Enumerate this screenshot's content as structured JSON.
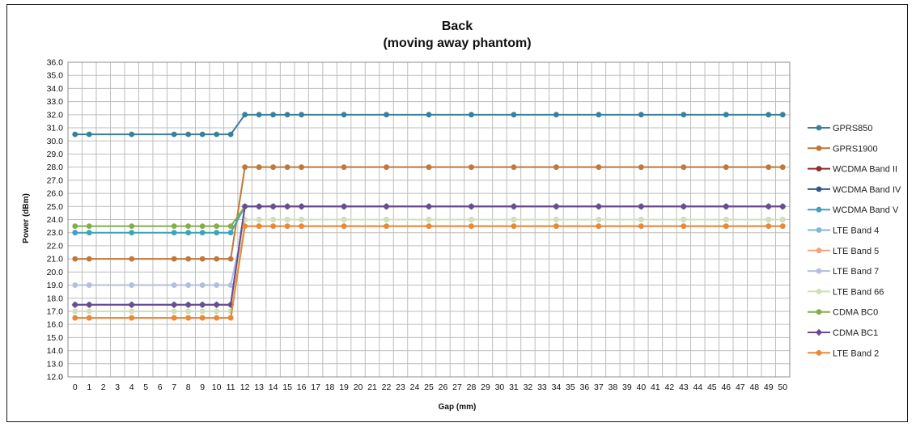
{
  "chart_data": {
    "type": "line",
    "title": "Back",
    "subtitle": "(moving away phantom)",
    "xlabel": "Gap (mm)",
    "ylabel": "Power (dBm)",
    "ylim": [
      12.0,
      36.0
    ],
    "y_step": 1.0,
    "y_tick_format": "one-decimal",
    "grid": true,
    "legend_position": "right",
    "x_categories": [
      "0",
      "1",
      "2",
      "3",
      "4",
      "5",
      "6",
      "7",
      "8",
      "9",
      "10",
      "11",
      "12",
      "13",
      "14",
      "15",
      "16",
      "17",
      "18",
      "19",
      "20",
      "21",
      "22",
      "23",
      "24",
      "25",
      "26",
      "27",
      "28",
      "29",
      "30",
      "31",
      "32",
      "33",
      "34",
      "35",
      "36",
      "37",
      "38",
      "39",
      "40",
      "41",
      "42",
      "43",
      "44",
      "45",
      "46",
      "47",
      "48",
      "49",
      "50"
    ],
    "x": [
      0,
      1,
      4,
      7,
      8,
      9,
      10,
      11,
      12,
      13,
      14,
      15,
      16,
      19,
      22,
      25,
      28,
      31,
      34,
      37,
      40,
      43,
      46,
      49,
      50
    ],
    "series": [
      {
        "name": "GPRS850",
        "color": "#3a8099",
        "marker": "circle",
        "values": [
          30.5,
          30.5,
          30.5,
          30.5,
          30.5,
          30.5,
          30.5,
          30.5,
          32,
          32,
          32,
          32,
          32,
          32,
          32,
          32,
          32,
          32,
          32,
          32,
          32,
          32,
          32,
          32,
          32
        ]
      },
      {
        "name": "GPRS1900",
        "color": "#c0773a",
        "marker": "circle",
        "values": [
          21,
          21,
          21,
          21,
          21,
          21,
          21,
          21,
          28,
          28,
          28,
          28,
          28,
          28,
          28,
          28,
          28,
          28,
          28,
          28,
          28,
          28,
          28,
          28,
          28
        ]
      },
      {
        "name": "WCDMA Band II",
        "color": "#8b2f2f",
        "marker": "circle",
        "values": [
          17.5,
          17.5,
          17.5,
          17.5,
          17.5,
          17.5,
          17.5,
          17.5,
          25,
          25,
          25,
          25,
          25,
          25,
          25,
          25,
          25,
          25,
          25,
          25,
          25,
          25,
          25,
          25,
          25
        ]
      },
      {
        "name": "WCDMA Band IV",
        "color": "#2f5a8b",
        "marker": "circle",
        "values": [
          17.5,
          17.5,
          17.5,
          17.5,
          17.5,
          17.5,
          17.5,
          17.5,
          25,
          25,
          25,
          25,
          25,
          25,
          25,
          25,
          25,
          25,
          25,
          25,
          25,
          25,
          25,
          25,
          25
        ]
      },
      {
        "name": "WCDMA Band V",
        "color": "#3fa3bd",
        "marker": "circle",
        "values": [
          23,
          23,
          23,
          23,
          23,
          23,
          23,
          23,
          25,
          25,
          25,
          25,
          25,
          25,
          25,
          25,
          25,
          25,
          25,
          25,
          25,
          25,
          25,
          25,
          25
        ]
      },
      {
        "name": "LTE Band 4",
        "color": "#7fb8d8",
        "marker": "circle",
        "values": [
          17.5,
          17.5,
          17.5,
          17.5,
          17.5,
          17.5,
          17.5,
          17.5,
          24,
          24,
          24,
          24,
          24,
          24,
          24,
          24,
          24,
          24,
          24,
          24,
          24,
          24,
          24,
          24,
          24
        ]
      },
      {
        "name": "LTE Band 5",
        "color": "#f0a57f",
        "marker": "circle",
        "values": [
          16.5,
          16.5,
          16.5,
          16.5,
          16.5,
          16.5,
          16.5,
          16.5,
          23.5,
          23.5,
          23.5,
          23.5,
          23.5,
          23.5,
          23.5,
          23.5,
          23.5,
          23.5,
          23.5,
          23.5,
          23.5,
          23.5,
          23.5,
          23.5,
          23.5
        ]
      },
      {
        "name": "LTE Band 7",
        "color": "#b3bfe0",
        "marker": "circle",
        "values": [
          19,
          19,
          19,
          19,
          19,
          19,
          19,
          19,
          24,
          24,
          24,
          24,
          24,
          24,
          24,
          24,
          24,
          24,
          24,
          24,
          24,
          24,
          24,
          24,
          24
        ]
      },
      {
        "name": "LTE Band 66",
        "color": "#cfe0b8",
        "marker": "circle",
        "values": [
          17,
          17,
          17,
          17,
          17,
          17,
          17,
          17,
          24,
          24,
          24,
          24,
          24,
          24,
          24,
          24,
          24,
          24,
          24,
          24,
          24,
          24,
          24,
          24,
          24
        ]
      },
      {
        "name": "CDMA BC0",
        "color": "#86ad4b",
        "marker": "circle",
        "values": [
          23.5,
          23.5,
          23.5,
          23.5,
          23.5,
          23.5,
          23.5,
          23.5,
          25,
          25,
          25,
          25,
          25,
          25,
          25,
          25,
          25,
          25,
          25,
          25,
          25,
          25,
          25,
          25,
          25
        ]
      },
      {
        "name": "CDMA BC1",
        "color": "#6a4b94",
        "marker": "diamond",
        "values": [
          17.5,
          17.5,
          17.5,
          17.5,
          17.5,
          17.5,
          17.5,
          17.5,
          25,
          25,
          25,
          25,
          25,
          25,
          25,
          25,
          25,
          25,
          25,
          25,
          25,
          25,
          25,
          25,
          25
        ]
      },
      {
        "name": "LTE Band 2",
        "color": "#e8893a",
        "marker": "circle",
        "values": [
          16.5,
          16.5,
          16.5,
          16.5,
          16.5,
          16.5,
          16.5,
          16.5,
          23.5,
          23.5,
          23.5,
          23.5,
          23.5,
          23.5,
          23.5,
          23.5,
          23.5,
          23.5,
          23.5,
          23.5,
          23.5,
          23.5,
          23.5,
          23.5,
          23.5
        ]
      }
    ]
  }
}
